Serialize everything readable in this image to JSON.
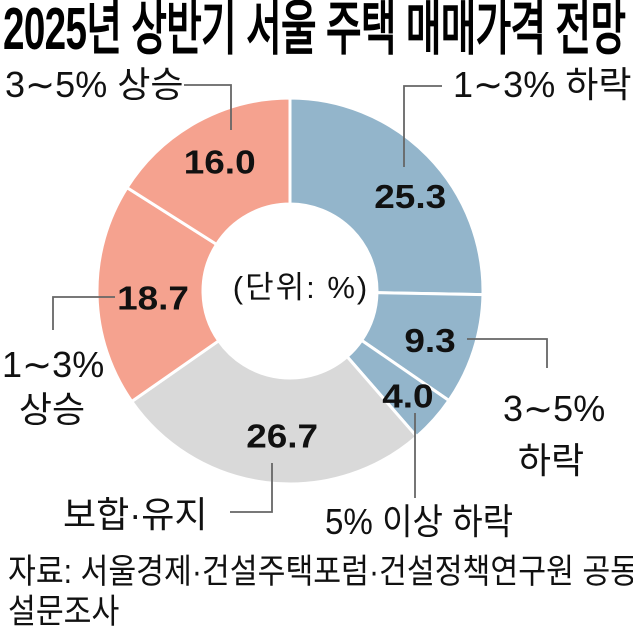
{
  "chart_data": {
    "type": "pie",
    "subtype": "donut",
    "title": "2025년 상반기 서울 주택 매매가격 전망",
    "unit_note": "(단위: %)",
    "direction": "clockwise",
    "start_angle_deg": 0,
    "segments": [
      {
        "label": "1∼3% 하락",
        "value": 25.3,
        "color": "#93b5cb"
      },
      {
        "label": "3∼5% 하락",
        "value": 9.3,
        "color": "#93b5cb"
      },
      {
        "label": "5% 이상 하락",
        "value": 4.0,
        "color": "#93b5cb"
      },
      {
        "label": "보합·유지",
        "value": 26.7,
        "color": "#d9d9d9"
      },
      {
        "label": "1∼3% 상승",
        "value": 18.7,
        "color": "#f5a28f"
      },
      {
        "label": "3∼5% 상승",
        "value": 16.0,
        "color": "#f5a28f"
      }
    ]
  },
  "callouts": {
    "rise_3_5": "3∼5% 상승",
    "decline_1_3": "1∼3% 하락",
    "decline_3_5_l1": "3∼5%",
    "decline_3_5_l2": "하락",
    "decline_5plus": "5% 이상 하락",
    "flat": "보합·유지",
    "rise_1_3_l1": "1∼3%",
    "rise_1_3_l2": "상승"
  },
  "source": {
    "line1": "자료: 서울경제·건설주택포럼·건설정책연구원 공동",
    "line2": "설문조사"
  }
}
